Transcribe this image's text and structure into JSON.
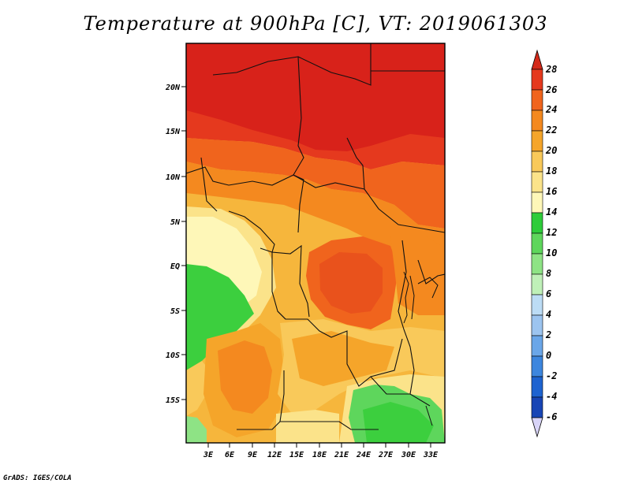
{
  "title": "Temperature at 900hPa [C], VT: 2019061303",
  "footer": "GrADS: IGES/COLA",
  "map": {
    "lat_labels": [
      "20N",
      "15N",
      "10N",
      "5N",
      "EQ",
      "5S",
      "10S",
      "15S"
    ],
    "lon_labels": [
      "3E",
      "6E",
      "9E",
      "12E",
      "15E",
      "18E",
      "21E",
      "24E",
      "27E",
      "30E",
      "33E"
    ]
  },
  "colorbar": {
    "labels": [
      "28",
      "26",
      "24",
      "22",
      "20",
      "18",
      "16",
      "14",
      "12",
      "10",
      "8",
      "6",
      "4",
      "2",
      "0",
      "-2",
      "-4",
      "-6"
    ],
    "colors": [
      "#d42a1a",
      "#e5391e",
      "#f0641d",
      "#f4891f",
      "#f5a52a",
      "#f9c95a",
      "#fbe38a",
      "#fef7b8",
      "#2ecc3a",
      "#5ed65c",
      "#8ee385",
      "#bff0b8",
      "#bcdcf5",
      "#9cc4ef",
      "#6aa6e8",
      "#3d86de",
      "#1e63d0",
      "#1845b5",
      "#0c2a8f",
      "#0a1470"
    ],
    "top_triangle_color": "#d42a1a",
    "bottom_triangle_color": "#d8d4f7"
  }
}
